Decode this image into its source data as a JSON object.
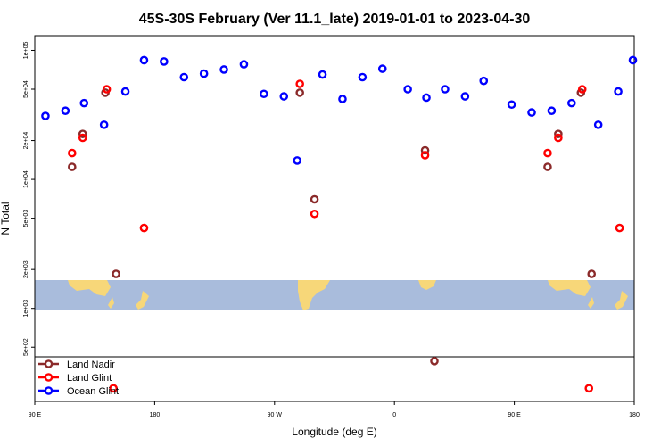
{
  "chart_data": {
    "type": "scatter",
    "title": "45S-30S February (Ver 11.1_late)   2019-01-01 to 2023-04-30",
    "xlabel": "Longitude (deg E)",
    "ylabel": "N Total",
    "x_axis": {
      "range_deg": [
        90,
        540
      ],
      "ticks": [
        {
          "value": 90,
          "label": "90 E"
        },
        {
          "value": 180,
          "label": "180"
        },
        {
          "value": 270,
          "label": "90 W"
        },
        {
          "value": 360,
          "label": "0"
        },
        {
          "value": 450,
          "label": "90 E"
        },
        {
          "value": 540,
          "label": "180"
        }
      ]
    },
    "y_axis": {
      "scale": "log",
      "range": [
        190,
        130000
      ],
      "ticks": [
        {
          "value": 500,
          "label": "5e+02"
        },
        {
          "value": 1000,
          "label": "1e+03"
        },
        {
          "value": 2000,
          "label": "2e+03"
        },
        {
          "value": 5000,
          "label": "5e+03"
        },
        {
          "value": 10000,
          "label": "1e+04"
        },
        {
          "value": 20000,
          "label": "2e+04"
        },
        {
          "value": 50000,
          "label": "5e+04"
        },
        {
          "value": 100000,
          "label": "1e+05"
        }
      ]
    },
    "legend_position": "bottom-left",
    "series": [
      {
        "name": "Land Nadir",
        "color": "#8b2a2a",
        "points": [
          [
            118,
            12500
          ],
          [
            126,
            22500
          ],
          [
            143,
            47000
          ],
          [
            151,
            1850
          ],
          [
            289,
            47000
          ],
          [
            300,
            7000
          ],
          [
            383,
            16800
          ],
          [
            390,
            390
          ],
          [
            475,
            12500
          ],
          [
            483,
            22500
          ],
          [
            500,
            47000
          ],
          [
            508,
            1850
          ]
        ]
      },
      {
        "name": "Land Glint",
        "color": "#ff0000",
        "points": [
          [
            118,
            16000
          ],
          [
            126,
            21000
          ],
          [
            144,
            50000
          ],
          [
            149,
            240
          ],
          [
            172,
            4200
          ],
          [
            289,
            55000
          ],
          [
            300,
            5400
          ],
          [
            383,
            15400
          ],
          [
            475,
            16000
          ],
          [
            483,
            21000
          ],
          [
            501,
            50000
          ],
          [
            506,
            240
          ],
          [
            529,
            4200
          ]
        ]
      },
      {
        "name": "Ocean Glint",
        "color": "#0000ff",
        "points": [
          [
            98,
            31000
          ],
          [
            113,
            34000
          ],
          [
            127,
            39000
          ],
          [
            142,
            26500
          ],
          [
            158,
            48000
          ],
          [
            172,
            84000
          ],
          [
            187,
            82000
          ],
          [
            202,
            62000
          ],
          [
            217,
            66000
          ],
          [
            232,
            71000
          ],
          [
            247,
            78000
          ],
          [
            262,
            46000
          ],
          [
            277,
            44000
          ],
          [
            287,
            14000
          ],
          [
            306,
            65000
          ],
          [
            321,
            42000
          ],
          [
            336,
            62000
          ],
          [
            351,
            72000
          ],
          [
            370,
            50000
          ],
          [
            384,
            43000
          ],
          [
            398,
            50000
          ],
          [
            413,
            44000
          ],
          [
            427,
            58000
          ],
          [
            448,
            38000
          ],
          [
            463,
            33000
          ],
          [
            478,
            34000
          ],
          [
            493,
            39000
          ],
          [
            513,
            26500
          ],
          [
            528,
            48000
          ],
          [
            539,
            84000
          ]
        ]
      }
    ]
  }
}
